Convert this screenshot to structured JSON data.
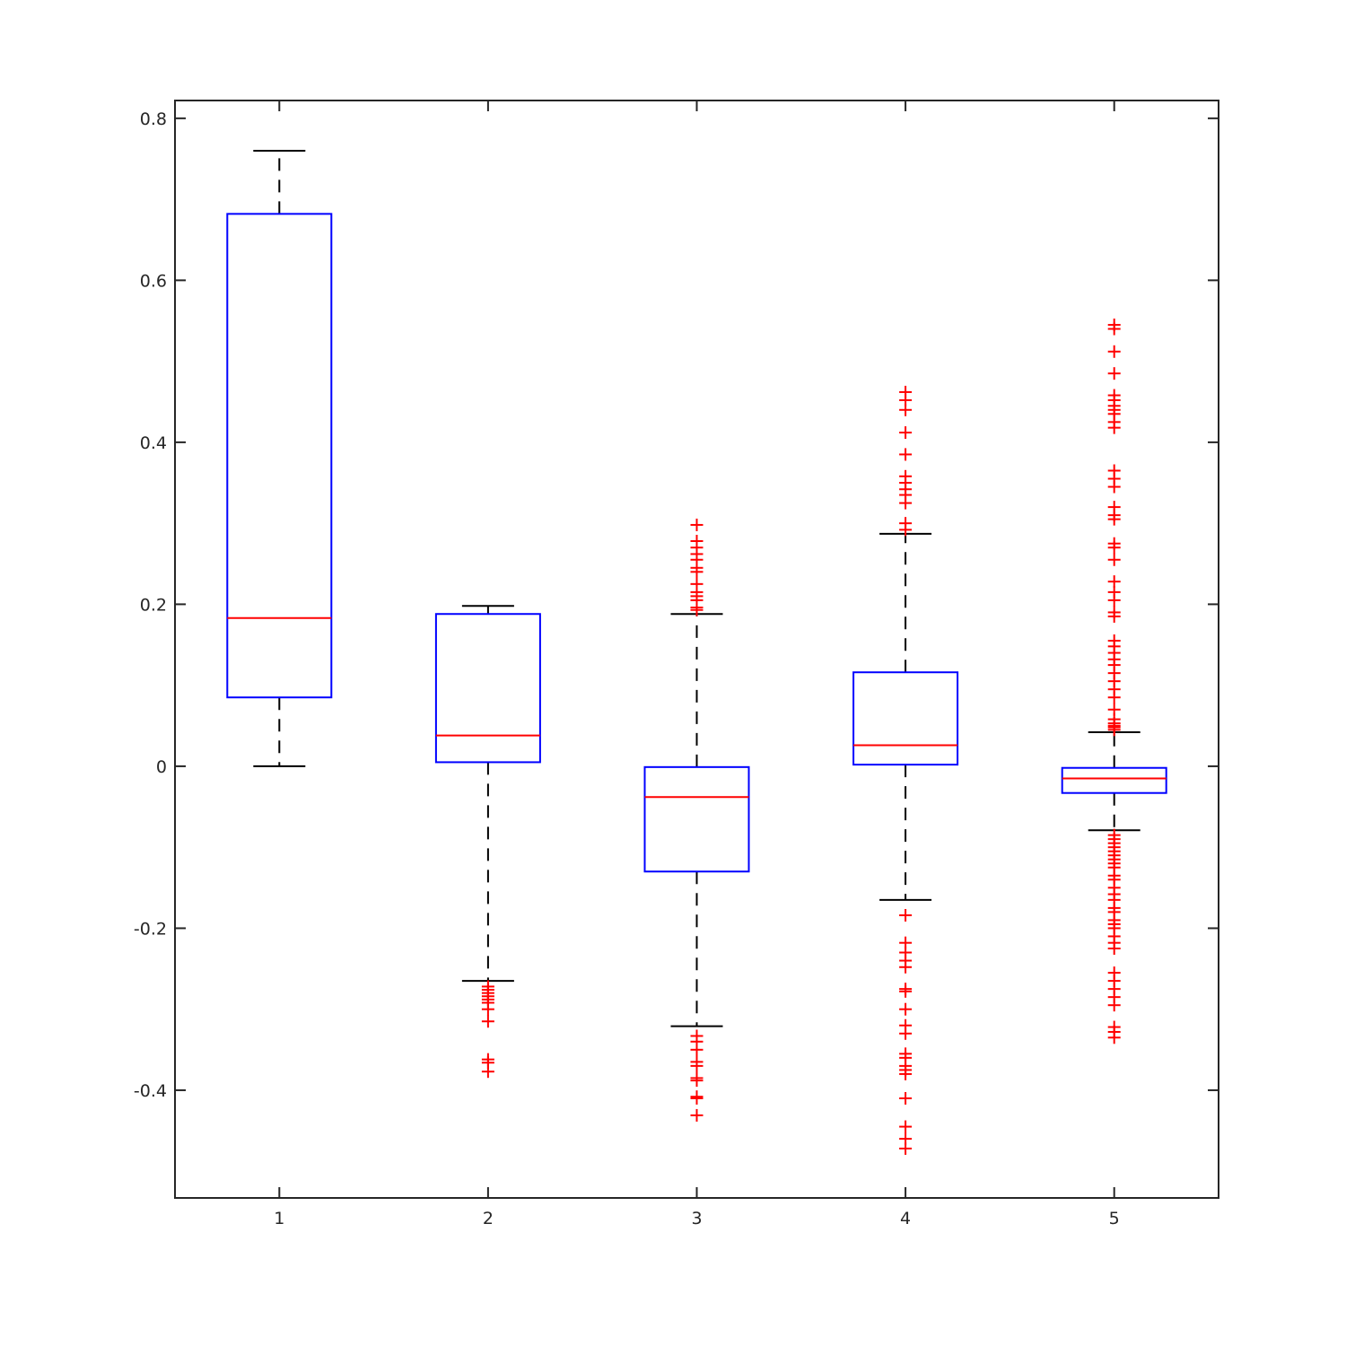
{
  "chart_data": {
    "type": "boxplot",
    "title": "",
    "xlabel": "",
    "ylabel": "",
    "categories": [
      "1",
      "2",
      "3",
      "4",
      "5"
    ],
    "ylim": [
      -0.533,
      0.822
    ],
    "yticks": [
      -0.4,
      -0.2,
      0,
      0.2,
      0.4,
      0.6,
      0.8
    ],
    "ytick_labels": [
      "-0.4",
      "-0.2",
      "0",
      "0.2",
      "0.4",
      "0.6",
      "0.8"
    ],
    "grid": false,
    "colors": {
      "box": "#0000ff",
      "median": "#ff0000",
      "whisker": "#000000",
      "outlier": "#ff0000",
      "axes": "#262626"
    },
    "boxes": [
      {
        "label": "1",
        "whisker_low": 0.0,
        "q1": 0.085,
        "median": 0.183,
        "q3": 0.682,
        "whisker_high": 0.76,
        "outliers": []
      },
      {
        "label": "2",
        "whisker_low": -0.265,
        "q1": 0.005,
        "median": 0.038,
        "q3": 0.188,
        "whisker_high": 0.198,
        "outliers": [
          -0.272,
          -0.276,
          -0.28,
          -0.284,
          -0.288,
          -0.292,
          -0.3,
          -0.315,
          -0.362,
          -0.366,
          -0.377
        ]
      },
      {
        "label": "3",
        "whisker_low": -0.321,
        "q1": -0.13,
        "median": -0.038,
        "q3": -0.001,
        "whisker_high": 0.188,
        "outliers": [
          0.193,
          0.196,
          0.205,
          0.21,
          0.215,
          0.225,
          0.24,
          0.245,
          0.255,
          0.262,
          0.27,
          0.278,
          0.298,
          -0.333,
          -0.34,
          -0.35,
          -0.365,
          -0.37,
          -0.385,
          -0.388,
          -0.408,
          -0.41,
          -0.431
        ]
      },
      {
        "label": "4",
        "whisker_low": -0.165,
        "q1": 0.002,
        "median": 0.026,
        "q3": 0.116,
        "whisker_high": 0.287,
        "outliers": [
          0.292,
          0.3,
          0.325,
          0.335,
          0.342,
          0.35,
          0.358,
          0.385,
          0.412,
          0.44,
          0.452,
          0.462,
          -0.184,
          -0.218,
          -0.23,
          -0.24,
          -0.248,
          -0.275,
          -0.278,
          -0.3,
          -0.32,
          -0.33,
          -0.355,
          -0.36,
          -0.37,
          -0.375,
          -0.38,
          -0.41,
          -0.445,
          -0.46,
          -0.472
        ]
      },
      {
        "label": "5",
        "whisker_low": -0.079,
        "q1": -0.033,
        "median": -0.015,
        "q3": -0.002,
        "whisker_high": 0.042,
        "outliers": [
          0.045,
          0.048,
          0.05,
          0.053,
          0.058,
          0.07,
          0.085,
          0.095,
          0.105,
          0.115,
          0.125,
          0.132,
          0.14,
          0.148,
          0.155,
          0.185,
          0.19,
          0.205,
          0.215,
          0.228,
          0.255,
          0.27,
          0.275,
          0.305,
          0.31,
          0.32,
          0.345,
          0.355,
          0.365,
          0.418,
          0.425,
          0.435,
          0.44,
          0.445,
          0.452,
          0.458,
          0.485,
          0.512,
          0.54,
          0.545,
          -0.085,
          -0.09,
          -0.095,
          -0.1,
          -0.105,
          -0.11,
          -0.115,
          -0.12,
          -0.125,
          -0.135,
          -0.14,
          -0.15,
          -0.158,
          -0.165,
          -0.175,
          -0.18,
          -0.19,
          -0.195,
          -0.2,
          -0.21,
          -0.218,
          -0.225,
          -0.255,
          -0.265,
          -0.275,
          -0.285,
          -0.295,
          -0.322,
          -0.328,
          -0.335
        ]
      }
    ]
  }
}
